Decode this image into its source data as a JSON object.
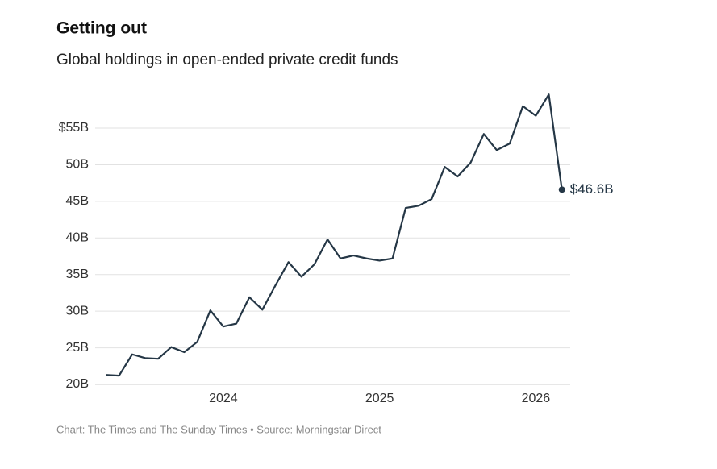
{
  "chart_data": {
    "type": "line",
    "title": "Getting out",
    "subtitle": "Global holdings in open-ended private credit funds",
    "source": "Chart: The Times and The Sunday Times • Source: Morningstar Direct",
    "x": [
      2023.25,
      2023.333,
      2023.417,
      2023.5,
      2023.583,
      2023.667,
      2023.75,
      2023.833,
      2023.917,
      2024.0,
      2024.083,
      2024.167,
      2024.25,
      2024.333,
      2024.417,
      2024.5,
      2024.583,
      2024.667,
      2024.75,
      2024.833,
      2024.917,
      2025.0,
      2025.083,
      2025.167,
      2025.25,
      2025.333,
      2025.417,
      2025.5,
      2025.583,
      2025.667,
      2025.75,
      2025.833,
      2025.917,
      2026.0,
      2026.083,
      2026.167
    ],
    "values": [
      21.3,
      21.2,
      24.1,
      23.6,
      23.5,
      25.1,
      24.4,
      25.8,
      30.1,
      27.9,
      28.3,
      31.9,
      30.2,
      33.5,
      36.7,
      34.7,
      36.4,
      39.8,
      37.2,
      37.6,
      37.2,
      36.9,
      37.2,
      44.1,
      44.4,
      45.3,
      49.7,
      48.4,
      50.3,
      54.2,
      52.0,
      52.9,
      58.0,
      56.7,
      59.6,
      46.6
    ],
    "value_labels": [
      null,
      null,
      null,
      null,
      null,
      null,
      null,
      null,
      null,
      null,
      null,
      null,
      null,
      null,
      null,
      null,
      null,
      null,
      null,
      null,
      null,
      null,
      null,
      null,
      null,
      null,
      null,
      null,
      null,
      null,
      null,
      null,
      null,
      null,
      null,
      "$46.6B"
    ],
    "color": "#253746",
    "xlim": [
      2023.18,
      2026.22
    ],
    "xticks": [
      2024,
      2025,
      2026
    ],
    "ylim": [
      20,
      60
    ],
    "yticks": [
      {
        "value": 20,
        "label": "20B"
      },
      {
        "value": 25,
        "label": "25B"
      },
      {
        "value": 30,
        "label": "30B"
      },
      {
        "value": 35,
        "label": "35B"
      },
      {
        "value": 40,
        "label": "40B"
      },
      {
        "value": 45,
        "label": "45B"
      },
      {
        "value": 50,
        "label": "50B"
      },
      {
        "value": 55,
        "label": "$55B"
      }
    ],
    "grid": true
  }
}
